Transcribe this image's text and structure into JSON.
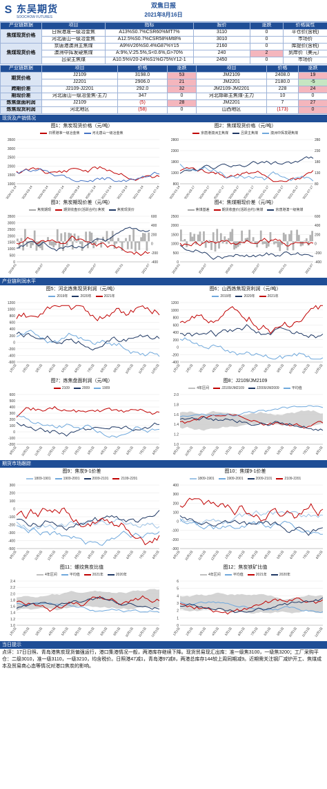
{
  "header": {
    "logo_mark": "S",
    "logo_cn": "东吴期货",
    "logo_en": "SOOCHOW FUTURES",
    "title": "双焦日报",
    "date": "2021年8月16日"
  },
  "spot_table": {
    "headers": [
      "产业链数据",
      "项目",
      "指标",
      "报价",
      "涨跌",
      "价格属性"
    ],
    "groups": [
      {
        "category": "焦煤现货价格",
        "rows": [
          {
            "item": "日照港准一级冶金焦",
            "spec": "A13%S0.7%CSR60%MT7%",
            "price": "3110",
            "change": "0",
            "attr": "平仓价(含税)"
          },
          {
            "item": "河北唐山一级冶金焦",
            "spec": "A12.5%S0.7%CSR58%Mt8%",
            "price": "3010",
            "change": "0",
            "attr": "市场价"
          }
        ]
      },
      {
        "category": "焦煤现货价格",
        "rows": [
          {
            "item": "京唐港澳洲主焦煤",
            "spec": "A9%V26%S0.4%G87%Y15",
            "price": "2160",
            "change": "0",
            "attr": "库提价(含税)"
          },
          {
            "item": "澳洲中挥发硬焦煤",
            "spec": "A:9%,V:25.5%,S<0.6%,G>70%",
            "price": "240",
            "change": "2",
            "attr": "到岸价（美元）",
            "hl": "pink"
          },
          {
            "item": "吕梁主焦煤",
            "spec": "A10.5%V20-24%S1%G75%Y12-1",
            "price": "2450",
            "change": "0",
            "attr": "市场价"
          }
        ]
      }
    ]
  },
  "futures_table": {
    "headers": [
      "产业链数据",
      "项目",
      "价格",
      "涨跌",
      "项目",
      "价格",
      "涨跌"
    ],
    "rows": [
      {
        "cat": "期货价格",
        "a_item": "J2109",
        "a_price": "3198.0",
        "a_chg": "53",
        "a_hl": "pink",
        "b_item": "JM2109",
        "b_price": "2408.0",
        "b_chg": "19",
        "b_hl": "pink"
      },
      {
        "cat": "",
        "a_item": "J2201",
        "a_price": "2906.0",
        "a_chg": "21",
        "a_hl": "pink",
        "b_item": "JM2201",
        "b_price": "2180.0",
        "b_chg": "-5",
        "b_hl": "green"
      },
      {
        "cat": "跨期价差",
        "a_item": "J2109-J2201",
        "a_price": "292.0",
        "a_chg": "32",
        "a_hl": "pink",
        "b_item": "JM2109-JM2201",
        "b_price": "228",
        "b_chg": "24",
        "b_hl": "pink"
      },
      {
        "cat": "期现价差",
        "a_item": "河北唐山一级冶金焦-主力",
        "a_price": "347",
        "a_chg": "0",
        "a_hl": "",
        "b_item": "河北邯郸主焦煤-主力",
        "b_price": "10",
        "b_chg": "0",
        "b_hl": ""
      },
      {
        "cat": "炼焦盘面利润",
        "a_item": "J2109",
        "a_price": "(5)",
        "a_price_red": true,
        "a_chg": "28",
        "a_hl": "pink",
        "b_item": "JM2201",
        "b_price": "7",
        "b_chg": "27",
        "b_hl": "pink"
      },
      {
        "cat": "炼焦现货利润",
        "a_item": "河北地区",
        "a_price": "(58)",
        "a_price_red": true,
        "a_chg": "0",
        "a_hl": "",
        "b_item": "山西地区",
        "b_price": "(173)",
        "b_price_red": true,
        "b_chg": "0",
        "b_hl": "pink"
      }
    ]
  },
  "sections": {
    "spot": "现货及产销情况",
    "profit": "产业链利润水平",
    "futures": "期货市场跟踪",
    "tips": "当日提示"
  },
  "charts": {
    "c1": {
      "title": "图1：焦炭现货价格（元/吨）",
      "legend": [
        "日照港准一级冶金焦",
        "河北唐山一级冶金焦"
      ],
      "colors": [
        "#c00000",
        "#4472c4"
      ],
      "yticks": [
        "3500",
        "3000",
        "2500",
        "2000",
        "1500",
        "1000"
      ],
      "xticks": [
        "2020-01-14",
        "2020-03-14",
        "2020-05-14",
        "2020-07-14",
        "2020-09-14",
        "2020-11-14",
        "2021-01-14",
        "2021-03-14",
        "2021-05-14",
        "2021-07-14"
      ]
    },
    "c2": {
      "title": "图2：焦煤现货价格（元/吨）",
      "legend": [
        "京唐港澳洲主焦煤",
        "吕梁主焦煤",
        "澳洲中挥发硬焦煤"
      ],
      "colors": [
        "#c00000",
        "#1f3864",
        "#6fa8dc"
      ],
      "yticks": [
        "2800",
        "2300",
        "1800",
        "1300",
        "800"
      ],
      "y2ticks": [
        "280",
        "230",
        "180",
        "130",
        "80"
      ],
      "xticks": [
        "2020-01-14",
        "2020-03-17",
        "2020-05-17",
        "2020-07-17",
        "2020-09-17",
        "2020-11-17",
        "2021-01-17",
        "2021-03-17",
        "2021-05-17",
        "2021-07-17"
      ]
    },
    "c3": {
      "title": "图3：焦炭期现价差（元/吨）",
      "legend": [
        "焦炭期现",
        "期货收盘价(活跃合约):焦炭",
        "焦炭现货价"
      ],
      "colors": [
        "#a6a6a6",
        "#c00000",
        "#1f3864"
      ],
      "yticks": [
        "3500",
        "3000",
        "2500",
        "2000",
        "1500",
        "1000",
        "500",
        "0"
      ],
      "y2ticks": [
        "600",
        "400",
        "200",
        "0",
        "-200",
        "-400"
      ],
      "xticks": [
        "2019-01",
        "2019-07",
        "2020-01",
        "2020-07",
        "2021-01",
        "2021-07"
      ]
    },
    "c4": {
      "title": "图4：焦煤期现价差（元/吨）",
      "legend": [
        "焦煤基差",
        "期货收盘价(活跃合约):焦煤",
        "京唐港澳一级焦煤"
      ],
      "colors": [
        "#a6a6a6",
        "#c00000",
        "#1f3864"
      ],
      "yticks": [
        "2500",
        "2000",
        "1500",
        "1000",
        "500",
        "0"
      ],
      "y2ticks": [
        "600",
        "400",
        "200",
        "0",
        "-200",
        "-400"
      ],
      "xticks": [
        "2019-01",
        "2019-07",
        "2020-01",
        "2020-07",
        "2021-01",
        "2021-07"
      ]
    },
    "c5": {
      "title": "图5：河北炼焦现货利润（元/吨）",
      "legend": [
        "2019年",
        "2020年",
        "2021年"
      ],
      "colors": [
        "#6fa8dc",
        "#1f3864",
        "#c00000"
      ],
      "yticks": [
        "1200",
        "1000",
        "800",
        "600",
        "400",
        "200",
        "0",
        "-200",
        "-400",
        "-600"
      ],
      "xticks": [
        "1月1日",
        "2月1日",
        "3月1日",
        "4月1日",
        "5月1日",
        "6月1日",
        "7月1日",
        "8月1日",
        "9月1日",
        "10月1日",
        "11月1日",
        "12月1日"
      ]
    },
    "c6": {
      "title": "图6：山西炼焦现货利润（元/吨）",
      "legend": [
        "2019年",
        "2020年",
        "2021年"
      ],
      "colors": [
        "#6fa8dc",
        "#1f3864",
        "#c00000"
      ],
      "yticks": [
        "1200",
        "1000",
        "800",
        "600",
        "400",
        "200",
        "0",
        "-200",
        "-400"
      ],
      "xticks": [
        "1月1日",
        "2月1日",
        "3月1日",
        "4月1日",
        "5月1日",
        "6月1日",
        "7月1日",
        "8月1日",
        "9月1日",
        "10月1日",
        "11月1日",
        "12月1日"
      ]
    },
    "c7": {
      "title": "图7：炼焦盘面利润（元/吨）",
      "legend": [
        "2109",
        "2009",
        "1909"
      ],
      "colors": [
        "#c00000",
        "#1f3864",
        "#6fa8dc"
      ],
      "yticks": [
        "600",
        "500",
        "400",
        "300",
        "200",
        "100",
        "0",
        "-100",
        "-200"
      ],
      "xticks": [
        "9月1日",
        "10月1日",
        "11月1日",
        "12月1日",
        "1月1日",
        "2月1日",
        "3月1日",
        "4月1日",
        "5月1日",
        "6月1日",
        "7月1日",
        "8月1日"
      ]
    },
    "c8": {
      "title": "图8：J2109/JM2109",
      "legend": [
        "4年区间",
        "J2109/JM2109",
        "J2009/JM2009",
        "平均值"
      ],
      "colors": [
        "#bfbfbf",
        "#c00000",
        "#1f3864",
        "#6fa8dc"
      ],
      "yticks": [
        "2.0",
        "1.8",
        "1.6",
        "1.4",
        "1.2",
        "1.0"
      ],
      "xticks": [
        "9月1日",
        "10月1日",
        "11月1日",
        "12月1日",
        "1月1日",
        "2月1日",
        "3月1日",
        "4月1日",
        "5月1日",
        "6月1日",
        "7月1日",
        "8月1日"
      ]
    },
    "c9": {
      "title": "图9：焦炭9-1价差",
      "legend": [
        "1809-1901",
        "1909-2001",
        "2009-2101",
        "2109-2201"
      ],
      "colors": [
        "#9dc3e6",
        "#6fa8dc",
        "#1f3864",
        "#c00000"
      ],
      "yticks": [
        "300",
        "200",
        "100",
        "0",
        "-100",
        "-200",
        "-300",
        "-400",
        "-500"
      ],
      "xticks": [
        "9月1日",
        "10月1日",
        "11月1日",
        "12月1日",
        "1月1日",
        "2月1日",
        "3月1日",
        "4月1日",
        "5月1日",
        "6月1日",
        "7月1日",
        "8月1日"
      ]
    },
    "c10": {
      "title": "图10：焦煤9-1价差",
      "legend": [
        "1809-1901",
        "1909-2001",
        "2009-2101",
        "2109-2201"
      ],
      "colors": [
        "#9dc3e6",
        "#6fa8dc",
        "#1f3864",
        "#c00000"
      ],
      "yticks": [
        "400",
        "300",
        "200",
        "100",
        "0",
        "-100",
        "-200",
        "-300"
      ],
      "xticks": [
        "9月1日",
        "10月1日",
        "11月1日",
        "12月1日",
        "1月1日",
        "2月1日",
        "3月1日",
        "4月1日",
        "5月1日",
        "6月1日",
        "7月1日",
        "8月1日"
      ]
    },
    "c11": {
      "title": "图11：螺纹焦炭比值",
      "legend": [
        "4年区间",
        "平均值",
        "2021年",
        "2020年"
      ],
      "colors": [
        "#bfbfbf",
        "#6fa8dc",
        "#c00000",
        "#1f3864"
      ],
      "yticks": [
        "2.4",
        "2.2",
        "2.0",
        "1.8",
        "1.6",
        "1.4",
        "1.2",
        "1.0"
      ],
      "xticks": [
        "1月1日",
        "2月1日",
        "3月1日",
        "4月1日",
        "5月1日",
        "6月1日",
        "7月1日",
        "8月1日",
        "9月1日",
        "10月1日",
        "11月1日",
        "12月1日"
      ]
    },
    "c12": {
      "title": "图12：焦炭铁矿比值",
      "legend": [
        "4年区间",
        "平均值",
        "2021年",
        "2020年"
      ],
      "colors": [
        "#bfbfbf",
        "#6fa8dc",
        "#c00000",
        "#1f3864"
      ],
      "yticks": [
        "6",
        "5",
        "4",
        "3",
        "2",
        "1",
        "0"
      ],
      "xticks": [
        "1月1日",
        "2月1日",
        "3月1日",
        "4月1日",
        "5月1日",
        "6月1日",
        "7月1日",
        "8月1日",
        "9月1日",
        "10月1日",
        "11月1日",
        "12月1日"
      ]
    }
  },
  "notes": "点评：17日日照、青岛港焦炭现货偏强运行，港口集港情况一般，两港库存继续下降。现货贸易现汇出库：准一级焦3100，一级焦3200；工厂采购平仓：二级3010，准一级3110，一级3210，均含税价。日照港47减1，青岛港97减8，两港总库存144较上周同期减9。近期需关注钢厂减炉开工、焦煤成本及贸易商心态等情况对港口焦炭的影响。"
}
